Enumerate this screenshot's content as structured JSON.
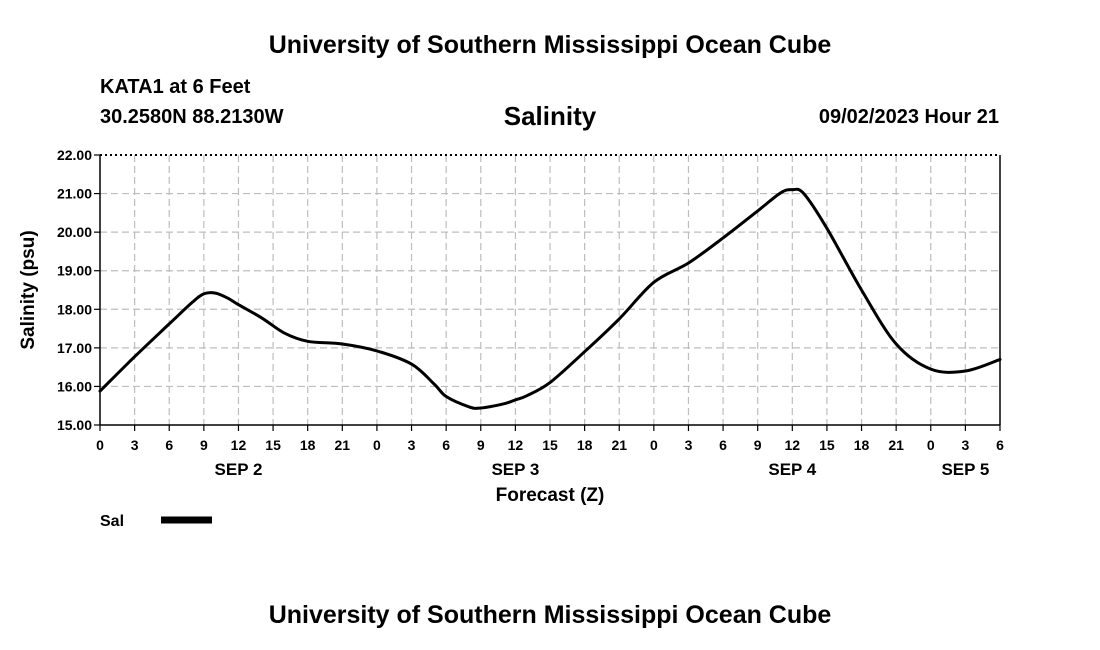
{
  "header": {
    "title": "University of Southern Mississippi Ocean Cube",
    "station": "KATA1 at 6 Feet",
    "location": "30.2580N  88.2130W",
    "datetime": "09/02/2023 Hour 21"
  },
  "footer": {
    "title": "University of Southern Mississippi Ocean Cube"
  },
  "chart_data": {
    "type": "line",
    "title": "Salinity",
    "xlabel": "Forecast (Z)",
    "ylabel": "Salinity (psu)",
    "ylim": [
      15.0,
      22.0
    ],
    "xlim": [
      0,
      78
    ],
    "x_unit": "hours since 09/02/2023 00Z",
    "y_tick_labels": [
      "15.00",
      "16.00",
      "17.00",
      "18.00",
      "19.00",
      "20.00",
      "21.00",
      "22.00"
    ],
    "x_tick_labels": [
      "0",
      "3",
      "6",
      "9",
      "12",
      "15",
      "18",
      "21",
      "0",
      "3",
      "6",
      "9",
      "12",
      "15",
      "18",
      "21",
      "0",
      "3",
      "6",
      "9",
      "12",
      "15",
      "18",
      "21",
      "0",
      "3",
      "6"
    ],
    "day_labels": [
      {
        "label": "SEP 2",
        "x": 12
      },
      {
        "label": "SEP 3",
        "x": 36
      },
      {
        "label": "SEP 4",
        "x": 60
      },
      {
        "label": "SEP 5",
        "x": 75
      }
    ],
    "grid": true,
    "legend_position": "bottom-left",
    "series": [
      {
        "name": "Sal",
        "color": "#000000",
        "x": [
          0,
          3,
          6,
          8,
          9,
          10,
          11,
          12,
          14,
          16,
          18,
          21,
          24,
          27,
          29,
          30,
          32,
          33,
          35,
          36,
          37,
          39,
          42,
          45,
          48,
          51,
          54,
          57,
          59,
          60,
          61,
          63,
          66,
          69,
          72,
          75,
          78
        ],
        "values": [
          15.88,
          16.77,
          17.62,
          18.18,
          18.4,
          18.42,
          18.3,
          18.12,
          17.78,
          17.38,
          17.17,
          17.1,
          16.92,
          16.58,
          16.05,
          15.74,
          15.47,
          15.44,
          15.55,
          15.65,
          15.76,
          16.1,
          16.9,
          17.75,
          18.7,
          19.2,
          19.85,
          20.55,
          21.02,
          21.1,
          21.0,
          20.1,
          18.5,
          17.1,
          16.45,
          16.4,
          16.7
        ]
      }
    ]
  }
}
